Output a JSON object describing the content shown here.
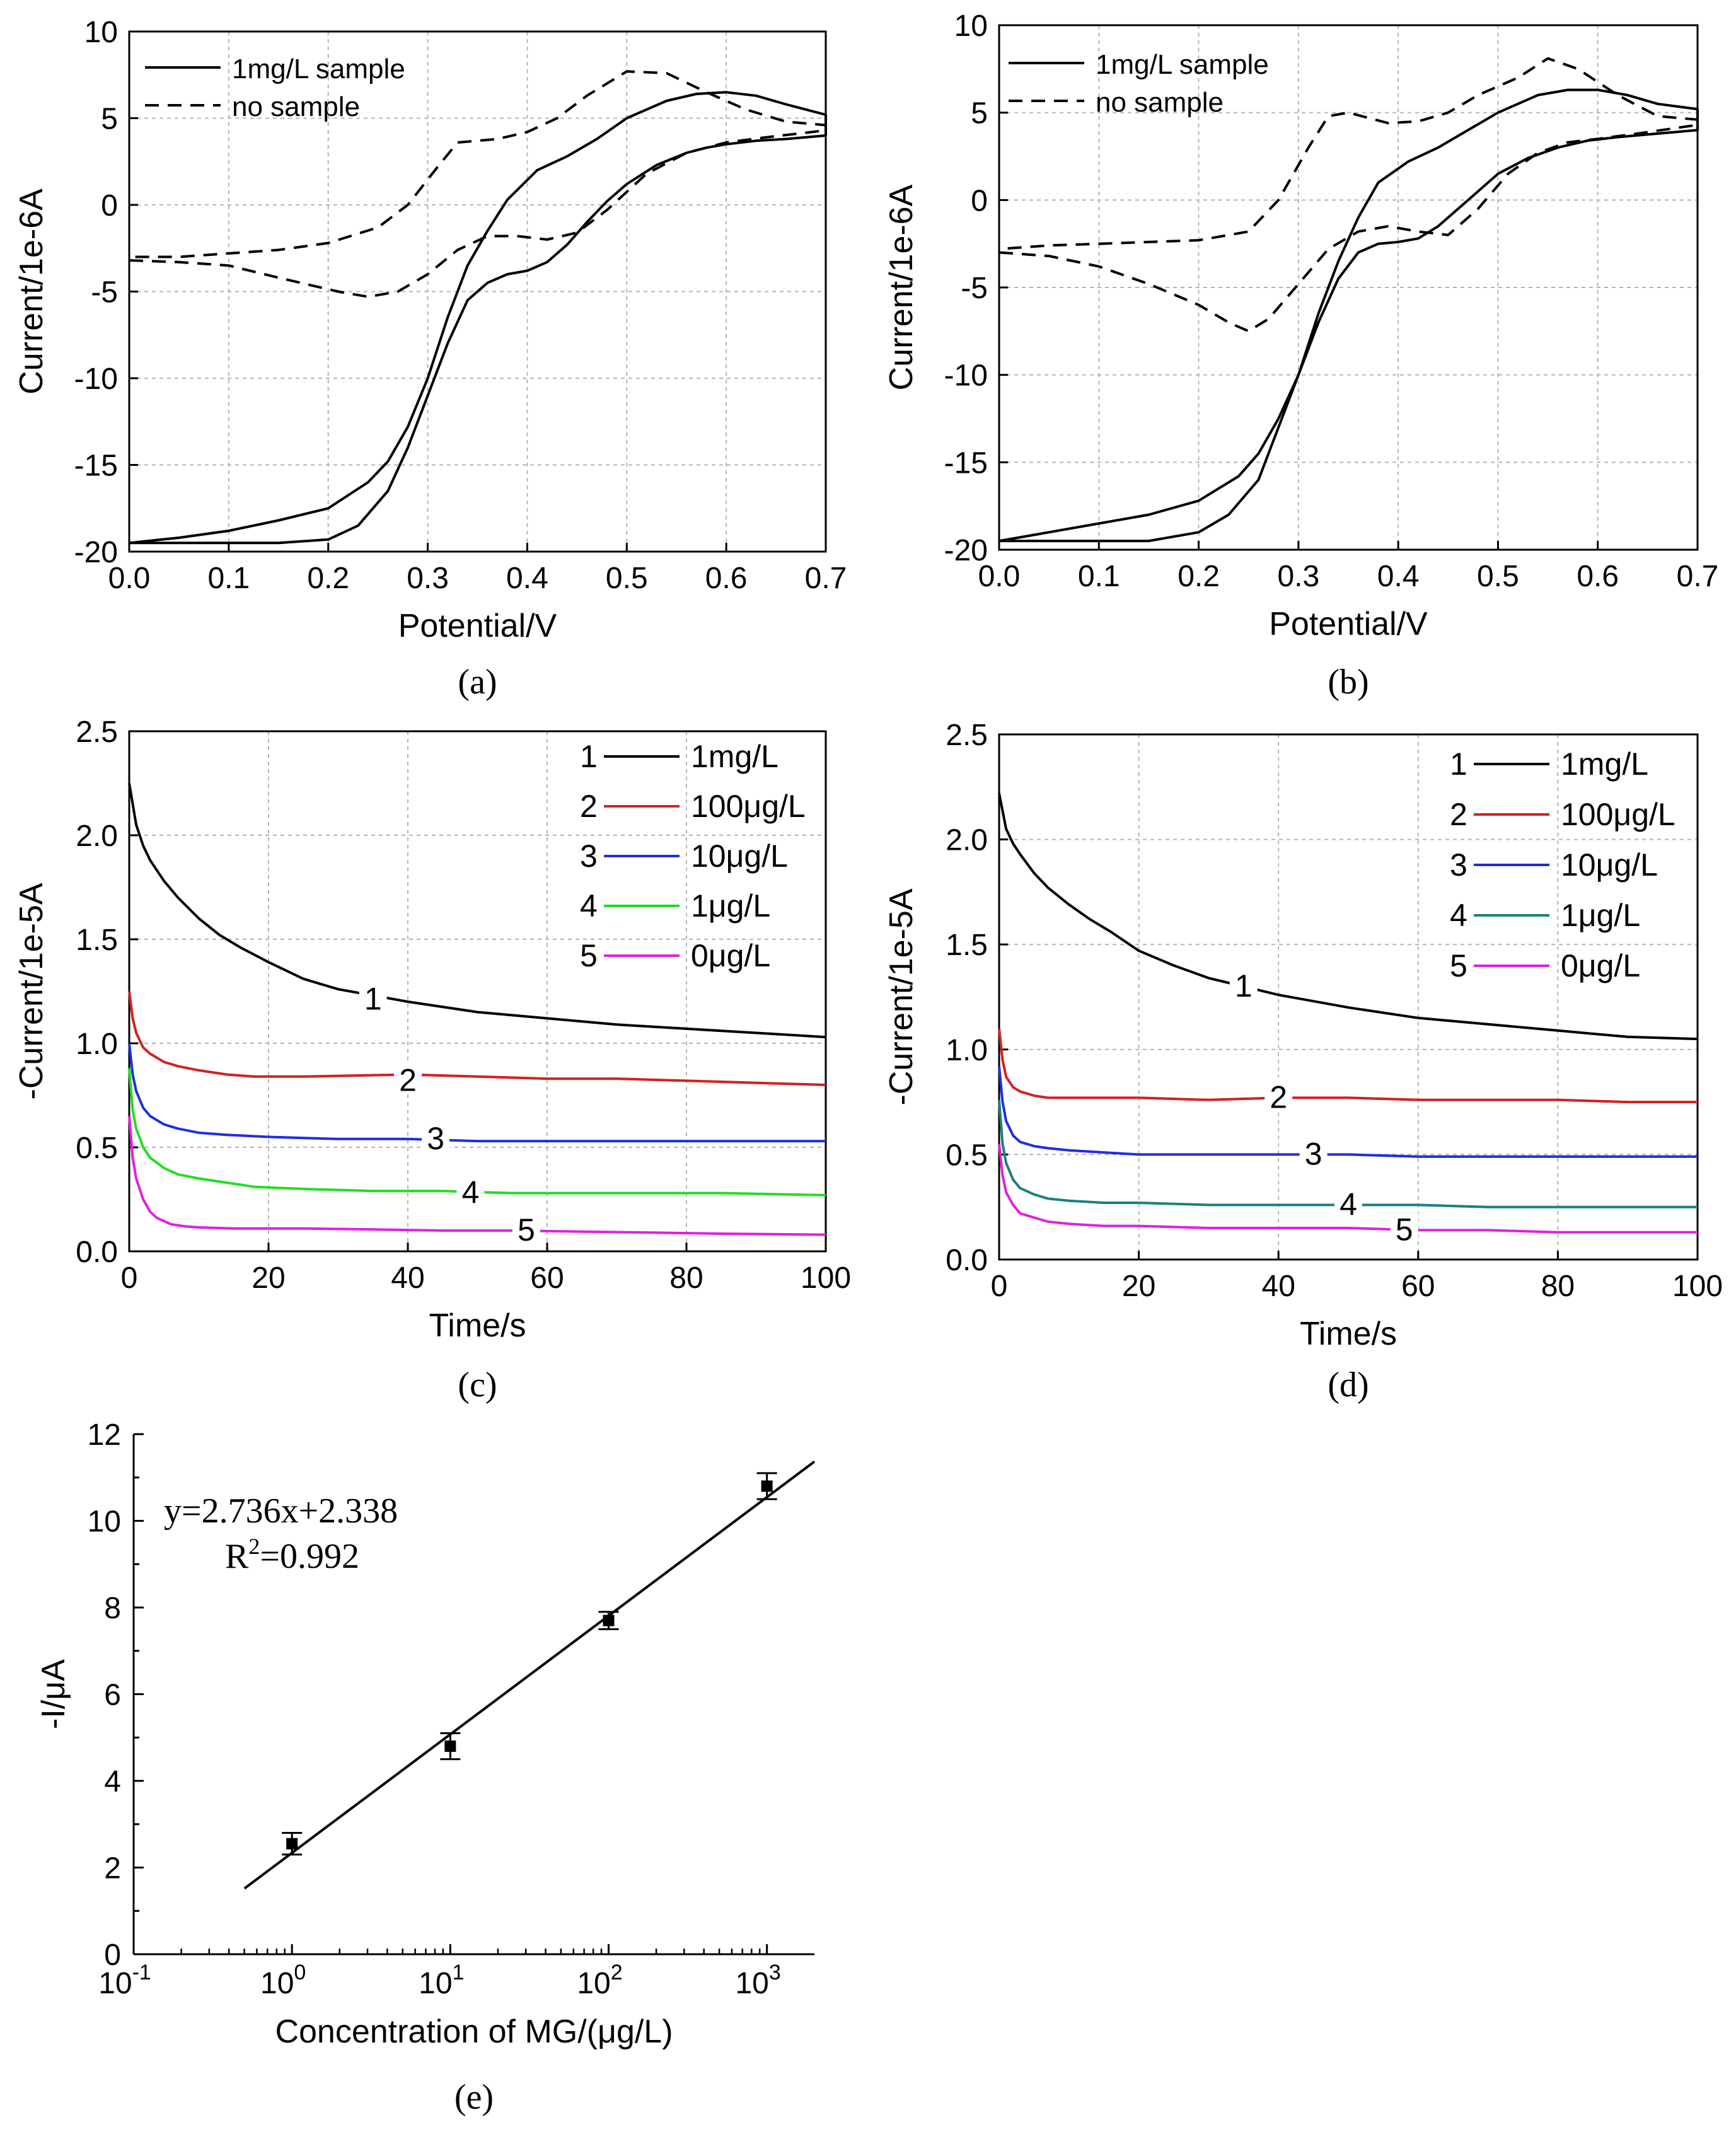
{
  "chart_data": [
    {
      "id": "a",
      "type": "line",
      "panel_label": "(a)",
      "xlabel": "Potential/V",
      "ylabel": "Current/1e-6A",
      "xlim": [
        0,
        0.7
      ],
      "ylim": [
        -20,
        10
      ],
      "xticks": [
        "0.0",
        "0.1",
        "0.2",
        "0.3",
        "0.4",
        "0.5",
        "0.6",
        "0.7"
      ],
      "yticks": [
        "-20",
        "-15",
        "-10",
        "-5",
        "0",
        "5",
        "10"
      ],
      "grid": true,
      "legend_position": "top-left",
      "series": [
        {
          "name": "1mg/L sample",
          "style": "solid",
          "color": "#000000",
          "x": [
            0.0,
            0.05,
            0.1,
            0.15,
            0.2,
            0.23,
            0.26,
            0.28,
            0.3,
            0.32,
            0.34,
            0.36,
            0.38,
            0.4,
            0.42,
            0.44,
            0.46,
            0.48,
            0.5,
            0.53,
            0.56,
            0.58,
            0.6,
            0.63,
            0.66,
            0.7,
            0.7,
            0.66,
            0.63,
            0.6,
            0.57,
            0.54,
            0.5,
            0.47,
            0.44,
            0.41,
            0.38,
            0.36,
            0.34,
            0.32,
            0.3,
            0.28,
            0.26,
            0.24,
            0.2,
            0.15,
            0.1,
            0.05,
            0.0
          ],
          "y": [
            -19.5,
            -19.5,
            -19.5,
            -19.5,
            -19.3,
            -18.5,
            -16.5,
            -14.0,
            -11.0,
            -8.0,
            -5.5,
            -4.5,
            -4.0,
            -3.8,
            -3.3,
            -2.3,
            -1.0,
            0.2,
            1.2,
            2.3,
            3.0,
            3.3,
            3.5,
            3.7,
            3.8,
            4.0,
            5.2,
            5.8,
            6.3,
            6.5,
            6.4,
            6.0,
            5.0,
            3.8,
            2.8,
            2.0,
            0.3,
            -1.5,
            -3.5,
            -6.5,
            -10.0,
            -12.8,
            -14.8,
            -16.0,
            -17.5,
            -18.2,
            -18.8,
            -19.2,
            -19.5
          ]
        },
        {
          "name": "no sample",
          "style": "dashed",
          "color": "#000000",
          "x": [
            0.0,
            0.05,
            0.1,
            0.15,
            0.18,
            0.21,
            0.24,
            0.27,
            0.3,
            0.33,
            0.36,
            0.39,
            0.42,
            0.45,
            0.48,
            0.52,
            0.56,
            0.6,
            0.64,
            0.7,
            0.7,
            0.66,
            0.62,
            0.58,
            0.54,
            0.5,
            0.46,
            0.43,
            0.4,
            0.37,
            0.35,
            0.33,
            0.31,
            0.28,
            0.25,
            0.2,
            0.15,
            0.1,
            0.05,
            0.0
          ],
          "y": [
            -3.2,
            -3.3,
            -3.5,
            -4.2,
            -4.6,
            -5.0,
            -5.3,
            -5.0,
            -4.0,
            -2.6,
            -1.8,
            -1.8,
            -2.0,
            -1.6,
            -0.3,
            1.8,
            3.0,
            3.6,
            3.9,
            4.3,
            4.6,
            4.8,
            5.5,
            6.5,
            7.6,
            7.7,
            6.3,
            5.0,
            4.2,
            3.8,
            3.7,
            3.6,
            2.2,
            0.0,
            -1.3,
            -2.2,
            -2.6,
            -2.8,
            -3.0,
            -3.0
          ]
        }
      ]
    },
    {
      "id": "b",
      "type": "line",
      "panel_label": "(b)",
      "xlabel": "Potential/V",
      "ylabel": "Current/1e-6A",
      "xlim": [
        0,
        0.7
      ],
      "ylim": [
        -20,
        10
      ],
      "xticks": [
        "0.0",
        "0.1",
        "0.2",
        "0.3",
        "0.4",
        "0.5",
        "0.6",
        "0.7"
      ],
      "yticks": [
        "-20",
        "-15",
        "-10",
        "-5",
        "0",
        "5",
        "10"
      ],
      "grid": true,
      "legend_position": "top-left",
      "series": [
        {
          "name": "1mg/L sample",
          "style": "solid",
          "color": "#000000",
          "x": [
            0.0,
            0.05,
            0.1,
            0.15,
            0.2,
            0.23,
            0.26,
            0.28,
            0.3,
            0.32,
            0.34,
            0.36,
            0.38,
            0.4,
            0.42,
            0.44,
            0.46,
            0.48,
            0.5,
            0.53,
            0.56,
            0.59,
            0.62,
            0.66,
            0.7,
            0.7,
            0.66,
            0.63,
            0.6,
            0.57,
            0.54,
            0.5,
            0.47,
            0.44,
            0.41,
            0.38,
            0.36,
            0.34,
            0.32,
            0.3,
            0.28,
            0.26,
            0.24,
            0.2,
            0.15,
            0.1,
            0.05,
            0.0
          ],
          "y": [
            -19.5,
            -19.5,
            -19.5,
            -19.5,
            -19.0,
            -18.0,
            -16.0,
            -13.0,
            -10.0,
            -7.0,
            -4.5,
            -3.0,
            -2.5,
            -2.4,
            -2.2,
            -1.5,
            -0.5,
            0.5,
            1.5,
            2.4,
            3.0,
            3.4,
            3.6,
            3.8,
            4.0,
            5.2,
            5.5,
            6.0,
            6.3,
            6.3,
            6.0,
            5.0,
            4.0,
            3.0,
            2.2,
            1.0,
            -1.0,
            -3.5,
            -6.5,
            -10.0,
            -12.5,
            -14.5,
            -15.8,
            -17.2,
            -18.0,
            -18.5,
            -19.0,
            -19.5
          ]
        },
        {
          "name": "no sample",
          "style": "dashed",
          "color": "#000000",
          "x": [
            0.0,
            0.05,
            0.1,
            0.15,
            0.2,
            0.23,
            0.25,
            0.27,
            0.3,
            0.33,
            0.36,
            0.39,
            0.42,
            0.45,
            0.48,
            0.51,
            0.54,
            0.57,
            0.6,
            0.64,
            0.7,
            0.7,
            0.66,
            0.62,
            0.58,
            0.55,
            0.52,
            0.48,
            0.45,
            0.42,
            0.39,
            0.37,
            0.35,
            0.33,
            0.31,
            0.28,
            0.25,
            0.2,
            0.15,
            0.1,
            0.05,
            0.0
          ],
          "y": [
            -3.0,
            -3.2,
            -3.8,
            -4.8,
            -6.0,
            -7.0,
            -7.5,
            -6.8,
            -4.8,
            -2.8,
            -1.8,
            -1.5,
            -1.8,
            -2.0,
            -0.5,
            1.5,
            2.7,
            3.3,
            3.5,
            3.8,
            4.3,
            4.6,
            4.8,
            6.0,
            7.5,
            8.1,
            7.0,
            6.0,
            5.0,
            4.5,
            4.4,
            4.7,
            5.0,
            4.8,
            3.0,
            0.0,
            -1.8,
            -2.3,
            -2.4,
            -2.5,
            -2.6,
            -2.8
          ]
        }
      ]
    },
    {
      "id": "c",
      "type": "line",
      "panel_label": "(c)",
      "xlabel": "Time/s",
      "ylabel": "-Current/1e-5A",
      "xlim": [
        0,
        100
      ],
      "ylim": [
        0,
        2.5
      ],
      "xticks": [
        "0",
        "20",
        "40",
        "60",
        "80",
        "100"
      ],
      "yticks": [
        "0.0",
        "0.5",
        "1.0",
        "1.5",
        "2.0",
        "2.5"
      ],
      "grid": true,
      "legend_position": "top-right",
      "series": [
        {
          "id": "1",
          "name": "1mg/L",
          "color": "#000000",
          "curve_label_at": [
            35,
            1.21
          ],
          "x": [
            0,
            1,
            2,
            3,
            5,
            7,
            10,
            13,
            16,
            20,
            25,
            30,
            35,
            40,
            50,
            60,
            70,
            80,
            90,
            100
          ],
          "y": [
            2.25,
            2.05,
            1.95,
            1.88,
            1.78,
            1.7,
            1.6,
            1.52,
            1.46,
            1.39,
            1.31,
            1.26,
            1.23,
            1.2,
            1.15,
            1.12,
            1.09,
            1.07,
            1.05,
            1.03
          ]
        },
        {
          "id": "2",
          "name": "100μg/L",
          "color": "#d42020",
          "curve_label_at": [
            40,
            0.82
          ],
          "x": [
            0,
            0.5,
            1,
            2,
            3,
            5,
            7,
            10,
            14,
            18,
            25,
            40,
            50,
            60,
            70,
            80,
            90,
            100
          ],
          "y": [
            1.25,
            1.12,
            1.05,
            0.98,
            0.95,
            0.91,
            0.89,
            0.87,
            0.85,
            0.84,
            0.84,
            0.85,
            0.84,
            0.83,
            0.83,
            0.82,
            0.81,
            0.8
          ]
        },
        {
          "id": "3",
          "name": "10μg/L",
          "color": "#1f2ee0",
          "curve_label_at": [
            44,
            0.54
          ],
          "x": [
            0,
            0.5,
            1,
            2,
            3,
            5,
            7,
            10,
            14,
            20,
            30,
            40,
            50,
            60,
            70,
            80,
            90,
            100
          ],
          "y": [
            1.0,
            0.85,
            0.77,
            0.69,
            0.65,
            0.61,
            0.59,
            0.57,
            0.56,
            0.55,
            0.54,
            0.54,
            0.53,
            0.53,
            0.53,
            0.53,
            0.53,
            0.53
          ]
        },
        {
          "id": "4",
          "name": "1μg/L",
          "color": "#22dd22",
          "curve_label_at": [
            49,
            0.28
          ],
          "x": [
            0,
            0.5,
            1,
            2,
            3,
            5,
            7,
            10,
            14,
            18,
            25,
            35,
            45,
            55,
            65,
            75,
            85,
            100
          ],
          "y": [
            0.88,
            0.68,
            0.59,
            0.5,
            0.45,
            0.4,
            0.37,
            0.35,
            0.33,
            0.31,
            0.3,
            0.29,
            0.29,
            0.28,
            0.28,
            0.28,
            0.28,
            0.27
          ]
        },
        {
          "id": "5",
          "name": "0μg/L",
          "color": "#e020e0",
          "curve_label_at": [
            57,
            0.1
          ],
          "x": [
            0,
            0.5,
            1,
            2,
            3,
            4,
            6,
            8,
            10,
            15,
            25,
            35,
            45,
            55,
            65,
            75,
            85,
            100
          ],
          "y": [
            0.65,
            0.45,
            0.35,
            0.25,
            0.19,
            0.16,
            0.13,
            0.12,
            0.115,
            0.11,
            0.11,
            0.105,
            0.1,
            0.1,
            0.095,
            0.09,
            0.085,
            0.08
          ]
        }
      ]
    },
    {
      "id": "d",
      "type": "line",
      "panel_label": "(d)",
      "xlabel": "Time/s",
      "ylabel": "-Current/1e-5A",
      "xlim": [
        0,
        100
      ],
      "ylim": [
        0,
        2.5
      ],
      "xticks": [
        "0",
        "20",
        "40",
        "60",
        "80",
        "100"
      ],
      "yticks": [
        "0.0",
        "0.5",
        "1.0",
        "1.5",
        "2.0",
        "2.5"
      ],
      "grid": true,
      "legend_position": "top-right",
      "series": [
        {
          "id": "1",
          "name": "1mg/L",
          "color": "#000000",
          "curve_label_at": [
            35,
            1.3
          ],
          "x": [
            0,
            1,
            2,
            3,
            5,
            7,
            10,
            13,
            16,
            20,
            25,
            30,
            35,
            40,
            50,
            60,
            70,
            80,
            90,
            100
          ],
          "y": [
            2.22,
            2.05,
            1.98,
            1.93,
            1.84,
            1.77,
            1.69,
            1.62,
            1.56,
            1.47,
            1.4,
            1.34,
            1.3,
            1.26,
            1.2,
            1.15,
            1.12,
            1.09,
            1.06,
            1.05
          ]
        },
        {
          "id": "2",
          "name": "100μg/L",
          "color": "#d42020",
          "curve_label_at": [
            40,
            0.77
          ],
          "x": [
            0,
            0.5,
            1,
            2,
            3,
            5,
            7,
            10,
            20,
            30,
            40,
            50,
            60,
            70,
            80,
            90,
            100
          ],
          "y": [
            1.1,
            0.95,
            0.87,
            0.82,
            0.8,
            0.78,
            0.77,
            0.77,
            0.77,
            0.76,
            0.77,
            0.77,
            0.76,
            0.76,
            0.76,
            0.75,
            0.75
          ]
        },
        {
          "id": "3",
          "name": "10μg/L",
          "color": "#1f2ee0",
          "curve_label_at": [
            45,
            0.5
          ],
          "x": [
            0,
            0.5,
            1,
            2,
            3,
            5,
            7,
            10,
            15,
            20,
            30,
            40,
            50,
            60,
            70,
            80,
            90,
            100
          ],
          "y": [
            0.92,
            0.75,
            0.66,
            0.59,
            0.56,
            0.54,
            0.53,
            0.52,
            0.51,
            0.5,
            0.5,
            0.5,
            0.5,
            0.49,
            0.49,
            0.49,
            0.49,
            0.49
          ]
        },
        {
          "id": "4",
          "name": "1μg/L",
          "color": "#1a8080",
          "curve_label_at": [
            50,
            0.26
          ],
          "x": [
            0,
            0.5,
            1,
            2,
            3,
            5,
            7,
            10,
            15,
            20,
            30,
            40,
            50,
            60,
            70,
            80,
            90,
            100
          ],
          "y": [
            0.76,
            0.55,
            0.46,
            0.38,
            0.34,
            0.31,
            0.29,
            0.28,
            0.27,
            0.27,
            0.26,
            0.26,
            0.26,
            0.26,
            0.25,
            0.25,
            0.25,
            0.25
          ]
        },
        {
          "id": "5",
          "name": "0μg/L",
          "color": "#e020e0",
          "curve_label_at": [
            58,
            0.14
          ],
          "x": [
            0,
            0.5,
            1,
            2,
            3,
            5,
            7,
            10,
            15,
            20,
            30,
            40,
            50,
            60,
            70,
            80,
            90,
            100
          ],
          "y": [
            0.55,
            0.4,
            0.32,
            0.26,
            0.22,
            0.2,
            0.18,
            0.17,
            0.16,
            0.16,
            0.15,
            0.15,
            0.15,
            0.14,
            0.14,
            0.13,
            0.13,
            0.13
          ]
        }
      ]
    },
    {
      "id": "e",
      "type": "scatter",
      "panel_label": "(e)",
      "xlabel": "Concentration of MG/(μg/L)",
      "ylabel": "-I/μA",
      "xscale": "log",
      "xlim_log10": [
        -1,
        3.3
      ],
      "ylim": [
        0,
        12
      ],
      "xticks": [
        {
          "base": "10",
          "exp": "-1"
        },
        {
          "base": "10",
          "exp": "0"
        },
        {
          "base": "10",
          "exp": "1"
        },
        {
          "base": "10",
          "exp": "2"
        },
        {
          "base": "10",
          "exp": "3"
        }
      ],
      "yticks": [
        "0",
        "2",
        "4",
        "6",
        "8",
        "10",
        "12"
      ],
      "grid": false,
      "points": {
        "x": [
          1,
          10,
          100,
          1000
        ],
        "y": [
          2.55,
          4.8,
          7.7,
          10.8
        ],
        "error": [
          0.25,
          0.3,
          0.2,
          0.3
        ]
      },
      "fit": {
        "slope": 2.736,
        "intercept": 2.338,
        "x_range_log10": [
          -0.3,
          3.3
        ]
      },
      "equation": "y=2.736x+2.338",
      "r_squared": {
        "lead": "R",
        "sup": "2",
        "rest": "=0.992"
      }
    }
  ]
}
